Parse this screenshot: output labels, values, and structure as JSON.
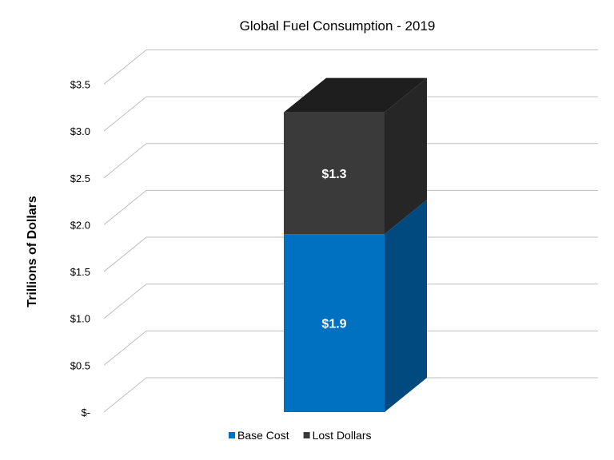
{
  "chart_data": {
    "type": "bar",
    "stacked": true,
    "three_d": true,
    "title": "Global Fuel Consumption - 2019",
    "ylabel": "Trillions of Dollars",
    "xlabel": "",
    "ylim": [
      0,
      3.5
    ],
    "y_ticks": [
      {
        "value": 0,
        "label": "$-"
      },
      {
        "value": 0.5,
        "label": "$0.5"
      },
      {
        "value": 1.0,
        "label": "$1.0"
      },
      {
        "value": 1.5,
        "label": "$1.5"
      },
      {
        "value": 2.0,
        "label": "$2.0"
      },
      {
        "value": 2.5,
        "label": "$2.5"
      },
      {
        "value": 3.0,
        "label": "$3.0"
      },
      {
        "value": 3.5,
        "label": "$3.5"
      }
    ],
    "grid": true,
    "legend": "bottom",
    "categories": [
      ""
    ],
    "series": [
      {
        "name": "Base Cost",
        "values": [
          1.9
        ],
        "label": "$1.9",
        "color": "#0070C0",
        "side_color": "#004A80",
        "top_color": "#0070C0"
      },
      {
        "name": "Lost Dollars",
        "values": [
          1.3
        ],
        "label": "$1.3",
        "color": "#3A3A3A",
        "side_color": "#262626",
        "top_color": "#1E1E1E"
      }
    ]
  }
}
